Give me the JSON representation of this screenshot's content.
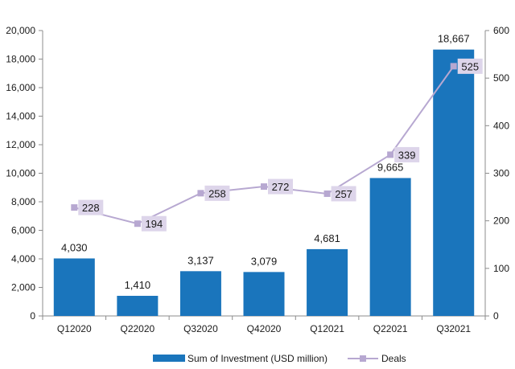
{
  "chart_data": {
    "type": "bar+line",
    "categories": [
      "Q12020",
      "Q22020",
      "Q32020",
      "Q42020",
      "Q12021",
      "Q22021",
      "Q32021"
    ],
    "series": [
      {
        "name": "Sum of Investment (USD million)",
        "type": "bar",
        "axis": "left",
        "color": "#1a75bc",
        "values": [
          4030,
          1410,
          3137,
          3079,
          4681,
          9665,
          18667
        ],
        "labels": [
          "4,030",
          "1,410",
          "3,137",
          "3,079",
          "4,681",
          "9,665",
          "18,667"
        ]
      },
      {
        "name": "Deals",
        "type": "line",
        "axis": "right",
        "color": "#b7a8d1",
        "label_bg": "#ddd5ea",
        "values": [
          228,
          194,
          258,
          272,
          257,
          339,
          525
        ],
        "labels": [
          "228",
          "194",
          "258",
          "272",
          "257",
          "339",
          "525"
        ]
      }
    ],
    "y_left": {
      "min": 0,
      "max": 20000,
      "ticks": [
        0,
        2000,
        4000,
        6000,
        8000,
        10000,
        12000,
        14000,
        16000,
        18000,
        20000
      ],
      "tick_labels": [
        "0",
        "2,000",
        "4,000",
        "6,000",
        "8,000",
        "10,000",
        "12,000",
        "14,000",
        "16,000",
        "18,000",
        "20,000"
      ]
    },
    "y_right": {
      "min": 0,
      "max": 600,
      "ticks": [
        0,
        100,
        200,
        300,
        400,
        500,
        600
      ],
      "tick_labels": [
        "0",
        "100",
        "200",
        "300",
        "400",
        "500",
        "600"
      ]
    },
    "title": "",
    "xlabel": "",
    "ylabel": "",
    "grid": false,
    "legend": {
      "position": "bottom",
      "items": [
        "Sum of Investment (USD million)",
        "Deals"
      ]
    }
  }
}
